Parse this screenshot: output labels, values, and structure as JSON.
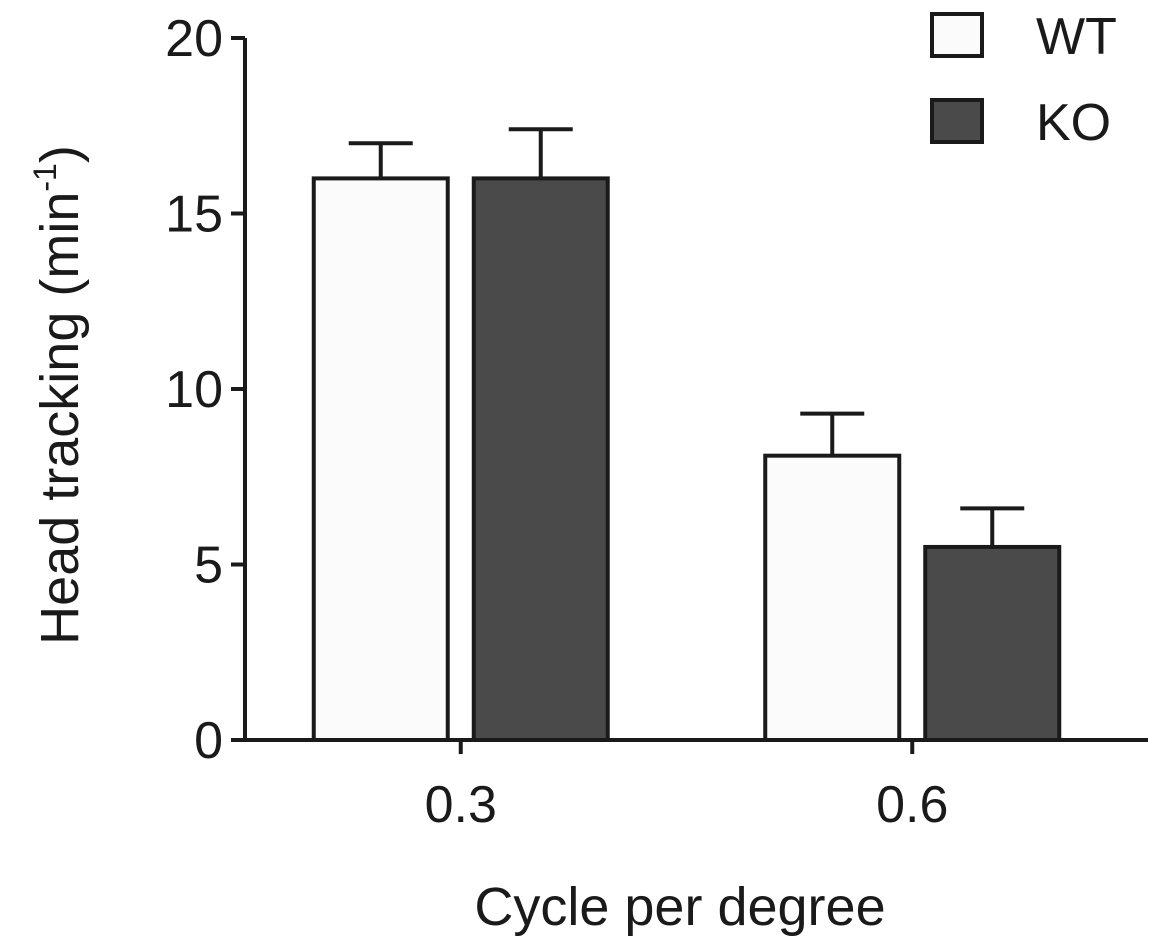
{
  "chart_data": {
    "type": "bar",
    "categories": [
      "0.3",
      "0.6"
    ],
    "series": [
      {
        "name": "WT",
        "values": [
          16.0,
          8.1
        ],
        "errors": [
          1.0,
          1.2
        ],
        "color": "#fbfbfb"
      },
      {
        "name": "KO",
        "values": [
          16.0,
          5.5
        ],
        "errors": [
          1.4,
          1.1
        ],
        "color": "#4a4a4a"
      }
    ],
    "xlabel": "Cycle per degree",
    "ylabel": "Head tracking (min",
    "ylabel_superscript": "-1",
    "ylabel_close": ")",
    "ylim": [
      0,
      20
    ],
    "yticks": [
      "0",
      "5",
      "10",
      "15",
      "20"
    ],
    "legend_position": "top-right",
    "grid": false
  }
}
